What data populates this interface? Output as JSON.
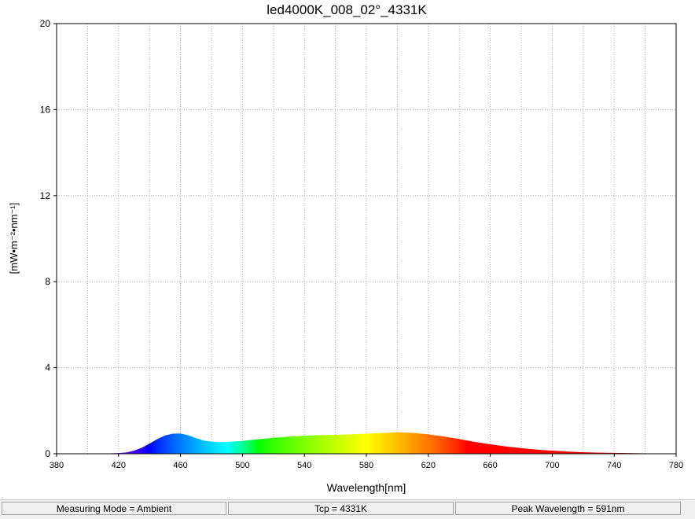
{
  "chart_data": {
    "type": "area",
    "title": "led4000K_008_02°_4331K",
    "xlabel": "Wavelength[nm]",
    "ylabel": "[mW•m⁻²•nm⁻¹]",
    "xlim": [
      380,
      780
    ],
    "ylim": [
      0,
      20
    ],
    "x_ticks": [
      380,
      420,
      460,
      500,
      540,
      580,
      620,
      660,
      700,
      740,
      780
    ],
    "y_ticks": [
      0,
      4,
      8,
      12,
      16,
      20
    ],
    "grid": true,
    "fill": "visible-spectrum colors",
    "series": [
      {
        "x": [
          380,
          400,
          410,
          420,
          425,
          430,
          435,
          440,
          445,
          450,
          455,
          460,
          465,
          470,
          475,
          480,
          485,
          490,
          500,
          510,
          520,
          530,
          540,
          550,
          560,
          570,
          580,
          590,
          600,
          610,
          620,
          630,
          640,
          650,
          660,
          670,
          680,
          690,
          700,
          710,
          720,
          730,
          740,
          760,
          780
        ],
        "y": [
          0.0,
          0.0,
          0.01,
          0.03,
          0.06,
          0.14,
          0.28,
          0.47,
          0.68,
          0.85,
          0.93,
          0.94,
          0.86,
          0.72,
          0.61,
          0.56,
          0.54,
          0.55,
          0.6,
          0.67,
          0.74,
          0.8,
          0.84,
          0.87,
          0.88,
          0.9,
          0.93,
          0.97,
          1.0,
          0.97,
          0.9,
          0.8,
          0.68,
          0.55,
          0.44,
          0.34,
          0.26,
          0.19,
          0.14,
          0.1,
          0.07,
          0.05,
          0.04,
          0.02,
          0.01
        ]
      }
    ]
  },
  "status_bar": {
    "mode": "Measuring Mode = Ambient",
    "tcp": "Tcp = 4331K",
    "peak": "Peak Wavelength = 591nm"
  }
}
